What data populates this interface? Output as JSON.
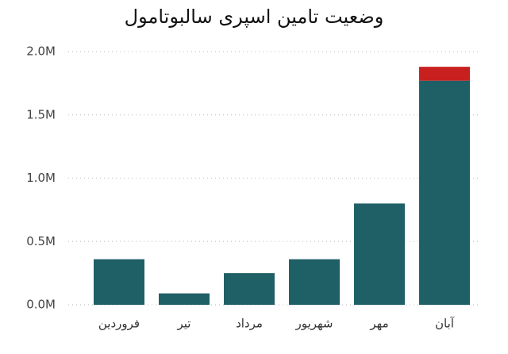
{
  "chart_data": {
    "type": "stacked_bar",
    "title": "وضعیت تامین اسپری سالبوتامول",
    "categories": [
      "فروردین",
      "تیر",
      "مرداد",
      "شهریور",
      "مهر",
      "آبان"
    ],
    "series": [
      {
        "color": "#1f5f66",
        "values": [
          360000,
          90000,
          250000,
          360000,
          800000,
          1770000
        ]
      },
      {
        "color": "#c8201e",
        "values": [
          null,
          null,
          null,
          null,
          null,
          110000
        ]
      }
    ],
    "ylim": [
      0,
      2000000
    ],
    "yticks": [
      {
        "value": 0,
        "label": "0.0M"
      },
      {
        "value": 500000,
        "label": "0.5M"
      },
      {
        "value": 1000000,
        "label": "1.0M"
      },
      {
        "value": 1500000,
        "label": "1.5M"
      },
      {
        "value": 2000000,
        "label": "2.0M"
      }
    ],
    "grid": true
  }
}
